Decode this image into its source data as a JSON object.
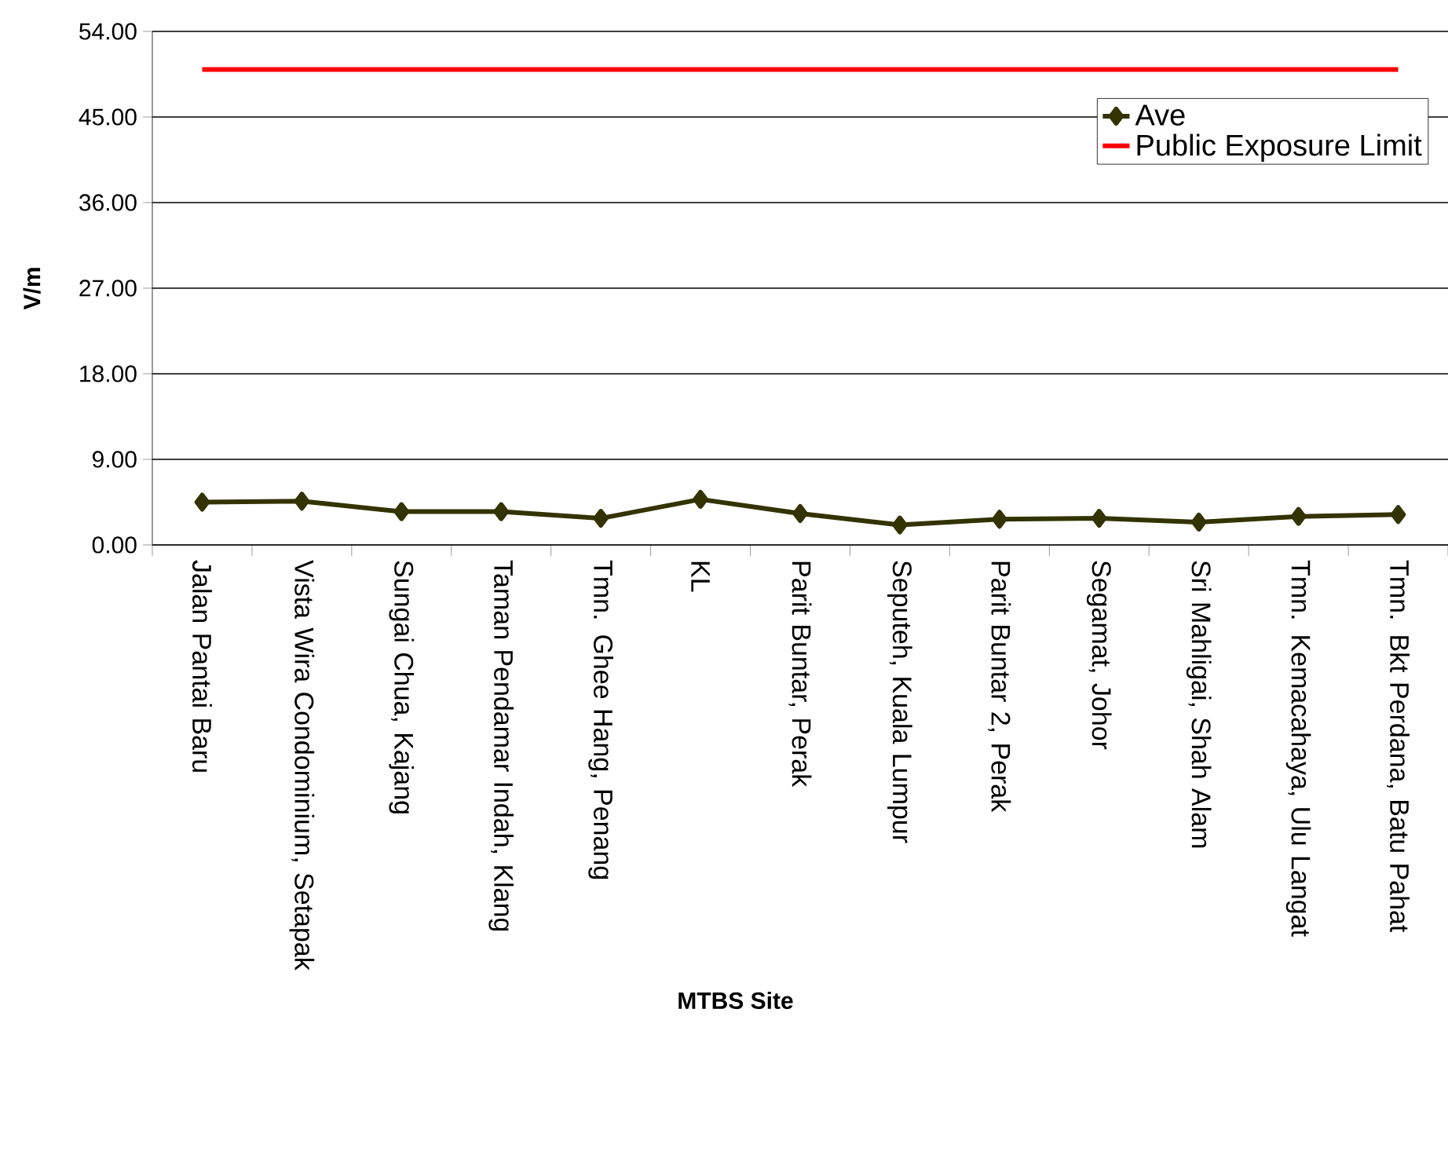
{
  "chart_data": {
    "type": "line",
    "xlabel": "MTBS Site",
    "ylabel": "V/m",
    "categories": [
      "Jalan Pantai Baru",
      "Vista Wira Condominium, Setapak",
      "Sungai Chua, Kajang",
      "Taman Pendamar Indah, Klang",
      "Tmn. Ghee Hang, Penang",
      "KL",
      "Parit Buntar, Perak",
      "Seputeh, Kuala Lumpur",
      "Parit Buntar 2, Perak",
      "Segamat, Johor",
      "Sri Mahligai, Shah Alam",
      "Tmn. Kemacahaya, Ulu Langat",
      "Tmn. Bkt Perdana, Batu Pahat"
    ],
    "series": [
      {
        "name": "Ave",
        "color": "#333300",
        "values": [
          4.5,
          4.6,
          3.5,
          3.5,
          2.8,
          4.8,
          3.3,
          2.1,
          2.7,
          2.8,
          2.4,
          3.0,
          3.2
        ]
      },
      {
        "name": "Public Exposure Limit",
        "color": "#ff0000",
        "marker": "none",
        "values": [
          50,
          50,
          50,
          50,
          50,
          50,
          50,
          50,
          50,
          50,
          50,
          50,
          50
        ]
      }
    ],
    "marker": "diamond",
    "line_style": "solid",
    "ylim": [
      0,
      54
    ],
    "yticks": [
      {
        "value": 0,
        "label": "0.00"
      },
      {
        "value": 9,
        "label": "9.00"
      },
      {
        "value": 18,
        "label": "18.00"
      },
      {
        "value": 27,
        "label": "27.00"
      },
      {
        "value": 36,
        "label": "36.00"
      },
      {
        "value": 45,
        "label": "45.00"
      },
      {
        "value": 54,
        "label": "54.00"
      }
    ],
    "grid": "y",
    "legend": "top right"
  }
}
